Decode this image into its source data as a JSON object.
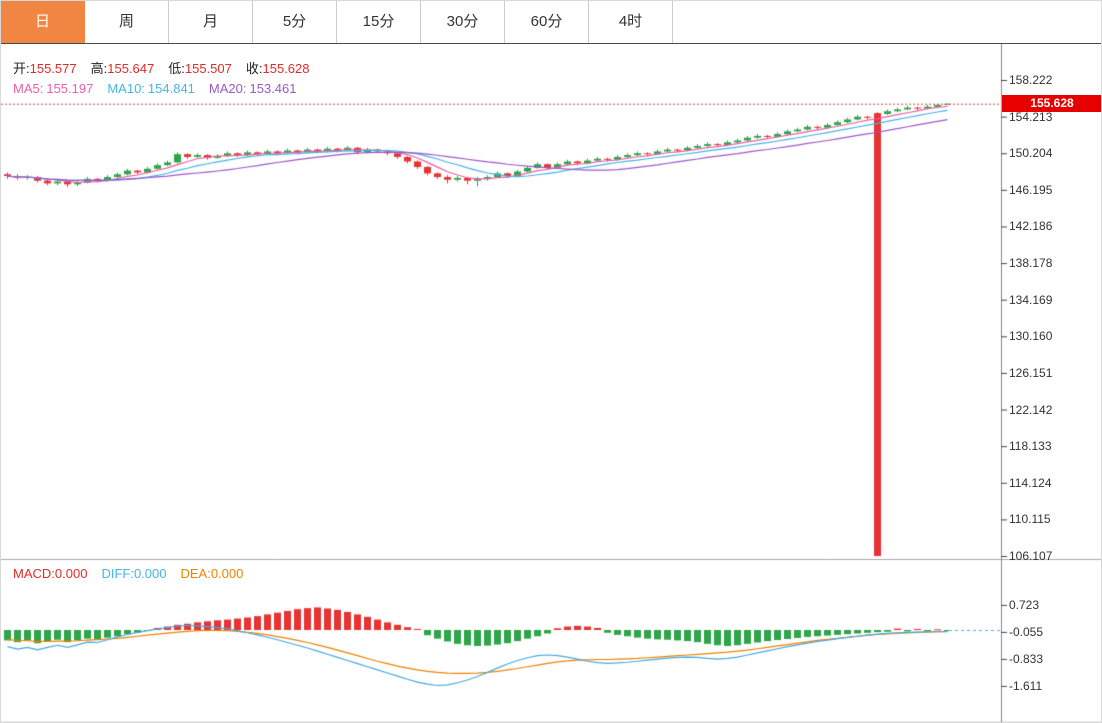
{
  "tabs": {
    "items": [
      {
        "key": "day",
        "label": "日",
        "active": true
      },
      {
        "key": "week",
        "label": "周",
        "active": false
      },
      {
        "key": "month",
        "label": "月",
        "active": false
      },
      {
        "key": "5min",
        "label": "5分",
        "active": false
      },
      {
        "key": "15min",
        "label": "15分",
        "active": false
      },
      {
        "key": "30min",
        "label": "30分",
        "active": false
      },
      {
        "key": "60min",
        "label": "60分",
        "active": false
      },
      {
        "key": "4hour",
        "label": "4时",
        "active": false
      }
    ]
  },
  "ohlc_row": {
    "open_label": "开:",
    "open_value": "155.577",
    "high_label": "高:",
    "high_value": "155.647",
    "low_label": "低:",
    "low_value": "155.507",
    "close_label": "收:",
    "close_value": "155.628"
  },
  "ma_row": {
    "ma5_label": "MA5:",
    "ma5_value": "155.197",
    "ma10_label": "MA10:",
    "ma10_value": "154.841",
    "ma20_label": "MA20:",
    "ma20_value": "153.461"
  },
  "macd_row": {
    "macd_label": "MACD:",
    "macd_value": "0.000",
    "diff_label": "DIFF:",
    "diff_value": "0.000",
    "dea_label": "DEA:",
    "dea_value": "0.000"
  },
  "price_axis": {
    "labels": [
      "158.222",
      "154.213",
      "150.204",
      "146.195",
      "142.186",
      "138.178",
      "134.169",
      "130.160",
      "126.151",
      "122.142",
      "118.133",
      "114.124",
      "110.115",
      "106.107"
    ],
    "current": "155.628"
  },
  "macd_axis": {
    "labels": [
      "0.723",
      "-0.055",
      "-0.833",
      "-1.611"
    ]
  },
  "colors": {
    "candle_up": "#2fa54a",
    "candle_down": "#e83333",
    "hist_positive": "#e83333",
    "hist_negative": "#2fa54a",
    "ma5": "#ed5fa7",
    "ma10": "#45b5e5",
    "ma20": "#9b59c8",
    "diff_line": "#45a9e0",
    "dea_line": "#ef8200",
    "price_line": "#e64545",
    "badge_bg": "#e60000",
    "value_red": "#e02b2b",
    "active_tab_bg": "#f08642"
  },
  "chart_data": [
    {
      "type": "candlestick",
      "title": "",
      "ylim": [
        106.107,
        158.222
      ],
      "y_axis_labels": [
        "158.222",
        "154.213",
        "150.204",
        "146.195",
        "142.186",
        "138.178",
        "134.169",
        "130.160",
        "126.151",
        "122.142",
        "118.133",
        "114.124",
        "110.115",
        "106.107"
      ],
      "current_price": 155.628,
      "ohlc": {
        "open": 155.577,
        "high": 155.647,
        "low": 155.507,
        "close": 155.628
      },
      "ma_periods": [
        5,
        10,
        20
      ],
      "ma_readout": {
        "ma5": 155.197,
        "ma10": 154.841,
        "ma20": 153.461
      },
      "candles": [
        [
          147.9,
          148.1,
          147.4,
          147.7
        ],
        [
          147.7,
          147.9,
          147.3,
          147.5
        ],
        [
          147.5,
          147.8,
          147.3,
          147.6
        ],
        [
          147.6,
          147.7,
          147.0,
          147.2
        ],
        [
          147.2,
          147.4,
          146.7,
          146.9
        ],
        [
          146.9,
          147.3,
          146.7,
          147.1
        ],
        [
          147.1,
          147.2,
          146.5,
          146.8
        ],
        [
          146.8,
          147.2,
          146.6,
          147.0
        ],
        [
          147.0,
          147.6,
          146.9,
          147.4
        ],
        [
          147.4,
          147.5,
          147.0,
          147.2
        ],
        [
          147.2,
          147.8,
          147.1,
          147.6
        ],
        [
          147.6,
          148.1,
          147.5,
          147.9
        ],
        [
          147.9,
          148.5,
          147.8,
          148.3
        ],
        [
          148.3,
          148.4,
          147.9,
          148.1
        ],
        [
          148.1,
          148.7,
          148.0,
          148.5
        ],
        [
          148.5,
          149.1,
          148.4,
          148.9
        ],
        [
          148.9,
          149.4,
          148.8,
          149.2
        ],
        [
          149.2,
          150.3,
          149.1,
          150.1
        ],
        [
          150.1,
          150.2,
          149.6,
          149.8
        ],
        [
          149.8,
          150.2,
          149.7,
          150.0
        ],
        [
          150.0,
          150.1,
          149.5,
          149.7
        ],
        [
          149.7,
          150.1,
          149.6,
          149.9
        ],
        [
          149.9,
          150.4,
          149.8,
          150.2
        ],
        [
          150.2,
          150.3,
          149.8,
          150.0
        ],
        [
          150.0,
          150.5,
          149.9,
          150.3
        ],
        [
          150.3,
          150.4,
          149.9,
          150.1
        ],
        [
          150.1,
          150.6,
          150.0,
          150.4
        ],
        [
          150.4,
          150.5,
          150.0,
          150.2
        ],
        [
          150.2,
          150.7,
          150.1,
          150.5
        ],
        [
          150.5,
          150.6,
          150.1,
          150.3
        ],
        [
          150.3,
          150.8,
          150.2,
          150.6
        ],
        [
          150.6,
          150.7,
          150.2,
          150.4
        ],
        [
          150.4,
          150.9,
          150.3,
          150.7
        ],
        [
          150.7,
          150.8,
          150.3,
          150.5
        ],
        [
          150.5,
          151.0,
          150.4,
          150.8
        ],
        [
          150.8,
          150.9,
          150.1,
          150.3
        ],
        [
          150.3,
          150.8,
          150.2,
          150.6
        ],
        [
          150.6,
          150.7,
          150.2,
          150.4
        ],
        [
          150.4,
          150.6,
          150.0,
          150.2
        ],
        [
          150.2,
          150.3,
          149.6,
          149.8
        ],
        [
          149.8,
          149.9,
          149.1,
          149.3
        ],
        [
          149.3,
          149.4,
          148.5,
          148.7
        ],
        [
          148.7,
          148.8,
          147.8,
          148.0
        ],
        [
          148.0,
          148.1,
          147.4,
          147.6
        ],
        [
          147.6,
          147.8,
          146.9,
          147.3
        ],
        [
          147.3,
          147.7,
          147.1,
          147.5
        ],
        [
          147.5,
          147.6,
          146.8,
          147.2
        ],
        [
          147.2,
          147.6,
          146.6,
          147.4
        ],
        [
          147.4,
          147.8,
          147.2,
          147.6
        ],
        [
          147.6,
          148.2,
          147.5,
          148.0
        ],
        [
          148.0,
          148.1,
          147.5,
          147.7
        ],
        [
          147.7,
          148.4,
          147.6,
          148.2
        ],
        [
          148.2,
          148.8,
          148.1,
          148.6
        ],
        [
          148.6,
          149.2,
          148.5,
          149.0
        ],
        [
          149.0,
          149.1,
          148.4,
          148.6
        ],
        [
          148.6,
          149.2,
          148.5,
          149.0
        ],
        [
          149.0,
          149.5,
          148.9,
          149.3
        ],
        [
          149.3,
          149.4,
          148.9,
          149.1
        ],
        [
          149.1,
          149.6,
          149.0,
          149.4
        ],
        [
          149.4,
          149.8,
          149.3,
          149.6
        ],
        [
          149.6,
          149.7,
          149.3,
          149.5
        ],
        [
          149.5,
          150.0,
          149.4,
          149.8
        ],
        [
          149.8,
          150.2,
          149.7,
          150.0
        ],
        [
          150.0,
          150.4,
          149.9,
          150.2
        ],
        [
          150.2,
          150.3,
          149.9,
          150.1
        ],
        [
          150.1,
          150.6,
          150.0,
          150.4
        ],
        [
          150.4,
          150.8,
          150.3,
          150.6
        ],
        [
          150.6,
          150.7,
          150.3,
          150.5
        ],
        [
          150.5,
          151.0,
          150.4,
          150.8
        ],
        [
          150.8,
          151.2,
          150.7,
          151.0
        ],
        [
          151.0,
          151.4,
          150.9,
          151.2
        ],
        [
          151.2,
          151.3,
          150.9,
          151.1
        ],
        [
          151.1,
          151.6,
          151.0,
          151.4
        ],
        [
          151.4,
          151.8,
          151.3,
          151.6
        ],
        [
          151.6,
          152.1,
          151.5,
          151.9
        ],
        [
          151.9,
          152.3,
          151.8,
          152.1
        ],
        [
          152.1,
          152.2,
          151.8,
          152.0
        ],
        [
          152.0,
          152.5,
          151.9,
          152.3
        ],
        [
          152.3,
          152.8,
          152.2,
          152.6
        ],
        [
          152.6,
          153.0,
          152.5,
          152.8
        ],
        [
          152.8,
          153.3,
          152.7,
          153.1
        ],
        [
          153.1,
          153.2,
          152.8,
          153.0
        ],
        [
          153.0,
          153.5,
          152.9,
          153.3
        ],
        [
          153.3,
          153.8,
          153.2,
          153.6
        ],
        [
          153.6,
          154.1,
          153.5,
          153.9
        ],
        [
          153.9,
          154.4,
          153.8,
          154.2
        ],
        [
          154.2,
          154.3,
          153.9,
          154.1
        ],
        [
          154.6,
          154.7,
          106.107,
          106.107
        ],
        [
          154.5,
          155.0,
          154.4,
          154.8
        ],
        [
          154.8,
          155.2,
          154.7,
          155.0
        ],
        [
          155.0,
          155.4,
          154.9,
          155.2
        ],
        [
          155.2,
          155.3,
          154.9,
          155.1
        ],
        [
          155.1,
          155.5,
          155.0,
          155.3
        ],
        [
          155.3,
          155.6,
          155.2,
          155.5
        ],
        [
          155.577,
          155.647,
          155.507,
          155.628
        ]
      ]
    },
    {
      "type": "bar",
      "title": "MACD",
      "y_axis_labels": [
        "0.723",
        "-0.055",
        "-0.833",
        "-1.611"
      ],
      "readout": {
        "macd": 0.0,
        "diff": 0.0,
        "dea": 0.0
      },
      "histogram": [
        -0.3,
        -0.35,
        -0.3,
        -0.38,
        -0.32,
        -0.28,
        -0.35,
        -0.3,
        -0.25,
        -0.28,
        -0.22,
        -0.18,
        -0.12,
        -0.08,
        -0.03,
        0.06,
        0.1,
        0.15,
        0.18,
        0.22,
        0.25,
        0.28,
        0.3,
        0.33,
        0.36,
        0.4,
        0.45,
        0.5,
        0.55,
        0.6,
        0.63,
        0.65,
        0.62,
        0.58,
        0.52,
        0.45,
        0.38,
        0.3,
        0.22,
        0.15,
        0.08,
        0.03,
        -0.15,
        -0.25,
        -0.33,
        -0.4,
        -0.44,
        -0.46,
        -0.45,
        -0.42,
        -0.38,
        -0.32,
        -0.25,
        -0.18,
        -0.1,
        0.05,
        0.1,
        0.12,
        0.1,
        0.06,
        -0.08,
        -0.14,
        -0.18,
        -0.22,
        -0.25,
        -0.27,
        -0.28,
        -0.3,
        -0.32,
        -0.35,
        -0.4,
        -0.44,
        -0.46,
        -0.44,
        -0.4,
        -0.36,
        -0.32,
        -0.29,
        -0.26,
        -0.23,
        -0.2,
        -0.18,
        -0.16,
        -0.14,
        -0.12,
        -0.1,
        -0.08,
        -0.06,
        -0.05,
        0.04,
        -0.04,
        0.03,
        -0.03,
        0.02,
        -0.02
      ],
      "series": [
        {
          "name": "DIFF",
          "values": [
            -0.48,
            -0.55,
            -0.5,
            -0.57,
            -0.5,
            -0.44,
            -0.5,
            -0.43,
            -0.35,
            -0.36,
            -0.28,
            -0.2,
            -0.13,
            -0.07,
            -0.02,
            0.03,
            0.07,
            0.11,
            0.13,
            0.12,
            0.1,
            0.07,
            0.03,
            -0.02,
            -0.08,
            -0.14,
            -0.21,
            -0.28,
            -0.36,
            -0.44,
            -0.52,
            -0.61,
            -0.7,
            -0.79,
            -0.88,
            -0.97,
            -1.06,
            -1.15,
            -1.24,
            -1.33,
            -1.42,
            -1.5,
            -1.56,
            -1.6,
            -1.58,
            -1.52,
            -1.44,
            -1.34,
            -1.22,
            -1.1,
            -0.98,
            -0.88,
            -0.8,
            -0.74,
            -0.72,
            -0.74,
            -0.78,
            -0.84,
            -0.9,
            -0.94,
            -0.96,
            -0.95,
            -0.93,
            -0.9,
            -0.87,
            -0.84,
            -0.81,
            -0.79,
            -0.78,
            -0.79,
            -0.82,
            -0.84,
            -0.82,
            -0.78,
            -0.72,
            -0.66,
            -0.6,
            -0.54,
            -0.48,
            -0.43,
            -0.38,
            -0.33,
            -0.29,
            -0.25,
            -0.21,
            -0.18,
            -0.15,
            -0.12,
            -0.1,
            -0.08,
            -0.07,
            -0.06,
            -0.05,
            -0.05,
            -0.04
          ]
        },
        {
          "name": "DEA",
          "values": [
            -0.28,
            -0.3,
            -0.31,
            -0.33,
            -0.33,
            -0.32,
            -0.32,
            -0.31,
            -0.29,
            -0.28,
            -0.26,
            -0.24,
            -0.21,
            -0.18,
            -0.15,
            -0.12,
            -0.09,
            -0.06,
            -0.04,
            -0.02,
            -0.01,
            -0.01,
            -0.02,
            -0.04,
            -0.07,
            -0.1,
            -0.14,
            -0.19,
            -0.24,
            -0.3,
            -0.36,
            -0.43,
            -0.5,
            -0.58,
            -0.66,
            -0.74,
            -0.82,
            -0.9,
            -0.97,
            -1.04,
            -1.1,
            -1.15,
            -1.19,
            -1.22,
            -1.24,
            -1.25,
            -1.25,
            -1.24,
            -1.22,
            -1.19,
            -1.15,
            -1.11,
            -1.06,
            -1.01,
            -0.96,
            -0.92,
            -0.89,
            -0.87,
            -0.86,
            -0.85,
            -0.85,
            -0.84,
            -0.83,
            -0.82,
            -0.8,
            -0.78,
            -0.76,
            -0.74,
            -0.72,
            -0.7,
            -0.68,
            -0.66,
            -0.64,
            -0.61,
            -0.58,
            -0.54,
            -0.5,
            -0.46,
            -0.42,
            -0.38,
            -0.34,
            -0.3,
            -0.27,
            -0.24,
            -0.21,
            -0.18,
            -0.15,
            -0.13,
            -0.11,
            -0.09,
            -0.08,
            -0.07,
            -0.06,
            -0.05,
            -0.05
          ]
        }
      ]
    }
  ]
}
